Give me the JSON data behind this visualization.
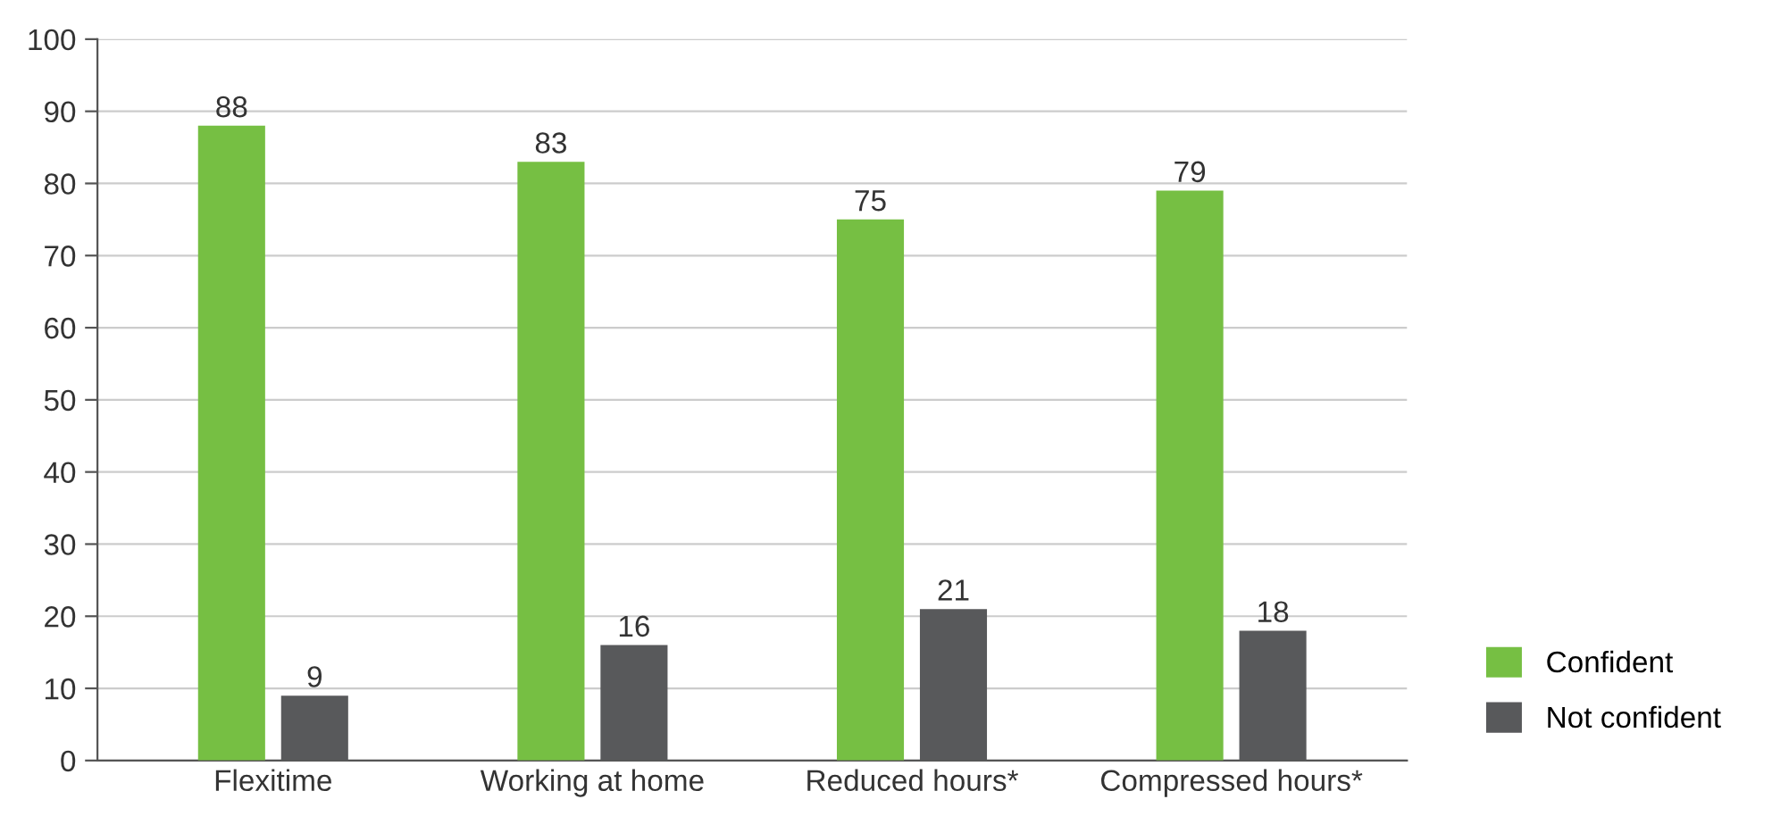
{
  "chart_data": {
    "type": "bar",
    "categories": [
      "Flexitime",
      "Working at home",
      "Reduced hours*",
      "Compressed hours*"
    ],
    "series": [
      {
        "name": "Confident",
        "color": "#76bf43",
        "values": [
          88,
          83,
          75,
          79
        ]
      },
      {
        "name": "Not confident",
        "color": "#58595b",
        "values": [
          9,
          16,
          21,
          18
        ]
      }
    ],
    "ylim": [
      0,
      100
    ],
    "yticks": [
      0,
      10,
      20,
      30,
      40,
      50,
      60,
      70,
      80,
      90,
      100
    ],
    "grid": "y",
    "legend": "bottom right",
    "data_labels": true
  }
}
